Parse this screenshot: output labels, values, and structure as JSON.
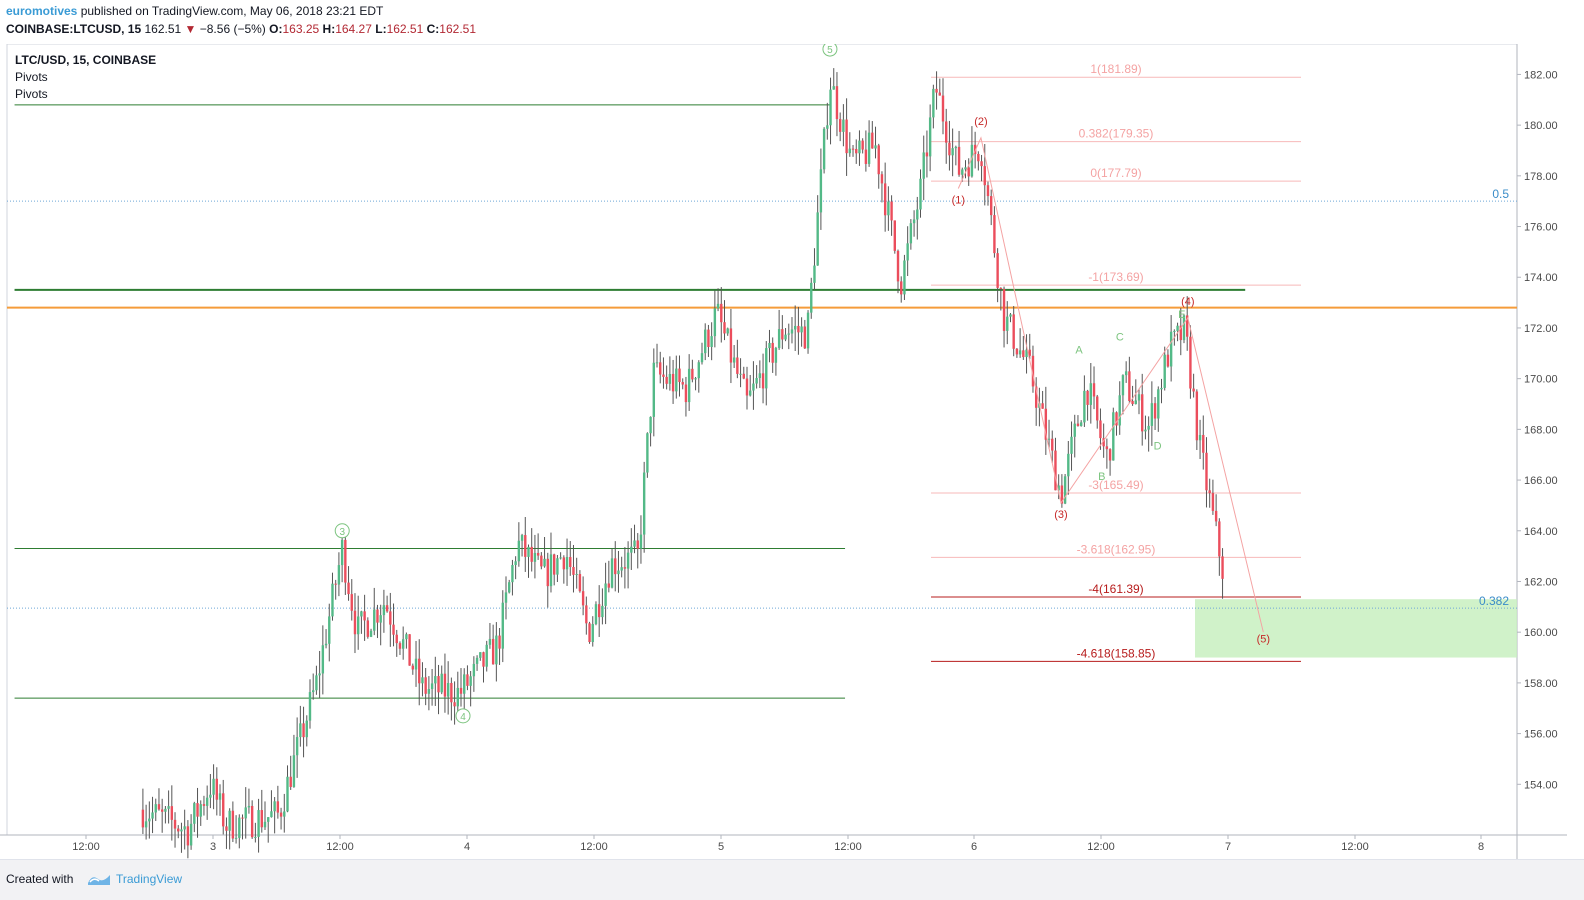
{
  "header": {
    "author": "euromotives",
    "published_text": " published on TradingView.com, May 06, 2018 23:21 EDT",
    "symbol": "COINBASE:LTCUSD, 15",
    "last_price": "162.51",
    "change_arrow": "▼",
    "change": "−8.56 (−5%)",
    "open_label": "O:",
    "open": "163.25",
    "high_label": "H:",
    "high": "164.27",
    "low_label": "L:",
    "low": "162.51",
    "close_label": "C:",
    "close": "162.51"
  },
  "legend": {
    "title": "LTC/USD, 15, COINBASE",
    "indicator1": "Pivots",
    "indicator2": "Pivots"
  },
  "footer": {
    "created_with": "Created with",
    "brand": "TradingView"
  },
  "colors": {
    "up": "#53b987",
    "down": "#eb4d5c",
    "wick": "#555555",
    "support_line": "#2e7d32",
    "orange_line": "#f59c3a",
    "fib_light": "#f7b9b9",
    "fib_dark": "#b71c1c",
    "wave_green": "#7cc47f",
    "wave_red": "#c62828",
    "target_zone": "#c8f0c0",
    "dotted_line": "#6ea6d8"
  },
  "chart_data": {
    "type": "candlestick",
    "y_axis_ticks": [
      "182.00",
      "180.00",
      "178.00",
      "176.00",
      "174.00",
      "172.00",
      "170.00",
      "168.00",
      "166.00",
      "164.00",
      "162.00",
      "160.00",
      "158.00",
      "156.00",
      "154.00"
    ],
    "y_range": [
      152.0,
      183.2
    ],
    "x_axis_ticks": [
      "12:00",
      "3",
      "12:00",
      "4",
      "12:00",
      "5",
      "12:00",
      "6",
      "12:00",
      "7",
      "12:00",
      "8"
    ],
    "price_path": [
      {
        "t": 0.09,
        "p": 153.0
      },
      {
        "t": 0.12,
        "p": 152.2
      },
      {
        "t": 0.135,
        "p": 154.0
      },
      {
        "t": 0.145,
        "p": 152.4
      },
      {
        "t": 0.18,
        "p": 152.8
      },
      {
        "t": 0.205,
        "p": 158.0
      },
      {
        "t": 0.222,
        "p": 163.3
      },
      {
        "t": 0.232,
        "p": 160.0
      },
      {
        "t": 0.25,
        "p": 161.2
      },
      {
        "t": 0.275,
        "p": 157.8
      },
      {
        "t": 0.3,
        "p": 157.6
      },
      {
        "t": 0.325,
        "p": 159.5
      },
      {
        "t": 0.338,
        "p": 163.5
      },
      {
        "t": 0.355,
        "p": 162.2
      },
      {
        "t": 0.37,
        "p": 163.2
      },
      {
        "t": 0.385,
        "p": 160.0
      },
      {
        "t": 0.4,
        "p": 162.7
      },
      {
        "t": 0.418,
        "p": 163.0
      },
      {
        "t": 0.428,
        "p": 170.2
      },
      {
        "t": 0.45,
        "p": 169.6
      },
      {
        "t": 0.47,
        "p": 172.6
      },
      {
        "t": 0.49,
        "p": 169.0
      },
      {
        "t": 0.515,
        "p": 172.0
      },
      {
        "t": 0.53,
        "p": 171.8
      },
      {
        "t": 0.545,
        "p": 181.8
      },
      {
        "t": 0.56,
        "p": 178.5
      },
      {
        "t": 0.575,
        "p": 179.2
      },
      {
        "t": 0.592,
        "p": 173.8
      },
      {
        "t": 0.605,
        "p": 177.4
      },
      {
        "t": 0.615,
        "p": 181.5
      },
      {
        "t": 0.63,
        "p": 178.2
      },
      {
        "t": 0.645,
        "p": 179.2
      },
      {
        "t": 0.66,
        "p": 172.5
      },
      {
        "t": 0.678,
        "p": 170.2
      },
      {
        "t": 0.698,
        "p": 165.4
      },
      {
        "t": 0.715,
        "p": 169.8
      },
      {
        "t": 0.728,
        "p": 166.8
      },
      {
        "t": 0.74,
        "p": 169.9
      },
      {
        "t": 0.756,
        "p": 168.1
      },
      {
        "t": 0.77,
        "p": 171.2
      },
      {
        "t": 0.78,
        "p": 171.9
      },
      {
        "t": 0.79,
        "p": 167.2
      },
      {
        "t": 0.805,
        "p": 162.5
      }
    ],
    "support_lines": [
      {
        "price": 180.8,
        "from": 0.005,
        "to": 0.545
      },
      {
        "price": 163.3,
        "from": 0.005,
        "to": 0.555
      },
      {
        "price": 157.4,
        "from": 0.005,
        "to": 0.555
      },
      {
        "price": 173.5,
        "from": 0.005,
        "to": 0.82
      }
    ],
    "orange_line": {
      "price": 172.8
    },
    "fib_levels": [
      {
        "label": "1(181.89)",
        "price": 181.89,
        "style": "light"
      },
      {
        "label": "0.382(179.35)",
        "price": 179.35,
        "style": "light"
      },
      {
        "label": "0(177.79)",
        "price": 177.79,
        "style": "light"
      },
      {
        "label": "-1(173.69)",
        "price": 173.69,
        "style": "light"
      },
      {
        "label": "-3(165.49)",
        "price": 165.49,
        "style": "light"
      },
      {
        "label": "-3.618(162.95)",
        "price": 162.95,
        "style": "light"
      },
      {
        "label": "-4(161.39)",
        "price": 161.39,
        "style": "dark"
      },
      {
        "label": "-4.618(158.85)",
        "price": 158.85,
        "style": "dark"
      }
    ],
    "dotted_levels": [
      {
        "label": "0.5",
        "price": 177.0
      },
      {
        "label": "0.382",
        "price": 160.95
      }
    ],
    "target_zone": {
      "from_price": 161.3,
      "to_price": 159.0
    },
    "wave_labels_circled": [
      {
        "label": "5",
        "t": 0.545,
        "price": 183.0
      },
      {
        "label": "3",
        "t": 0.222,
        "price": 164.0
      },
      {
        "label": "4",
        "t": 0.302,
        "price": 156.7
      }
    ],
    "wave_labels_red": [
      {
        "label": "(1)",
        "t": 0.63,
        "price": 176.9
      },
      {
        "label": "(2)",
        "t": 0.645,
        "price": 180.0
      },
      {
        "label": "(3)",
        "t": 0.698,
        "price": 164.5
      },
      {
        "label": "(4)",
        "t": 0.782,
        "price": 172.9
      },
      {
        "label": "(5)",
        "t": 0.832,
        "price": 159.6
      }
    ],
    "wave_labels_green": [
      {
        "label": "A",
        "t": 0.71,
        "price": 171.0
      },
      {
        "label": "B",
        "t": 0.725,
        "price": 166.0
      },
      {
        "label": "C",
        "t": 0.737,
        "price": 171.5
      },
      {
        "label": "D",
        "t": 0.762,
        "price": 167.2
      },
      {
        "label": "E",
        "t": 0.778,
        "price": 172.4
      }
    ],
    "projection_path": [
      {
        "t": 0.63,
        "p": 177.5
      },
      {
        "t": 0.645,
        "p": 179.5
      },
      {
        "t": 0.698,
        "p": 165.1
      },
      {
        "t": 0.782,
        "p": 172.4
      },
      {
        "t": 0.832,
        "p": 160.0
      }
    ]
  }
}
